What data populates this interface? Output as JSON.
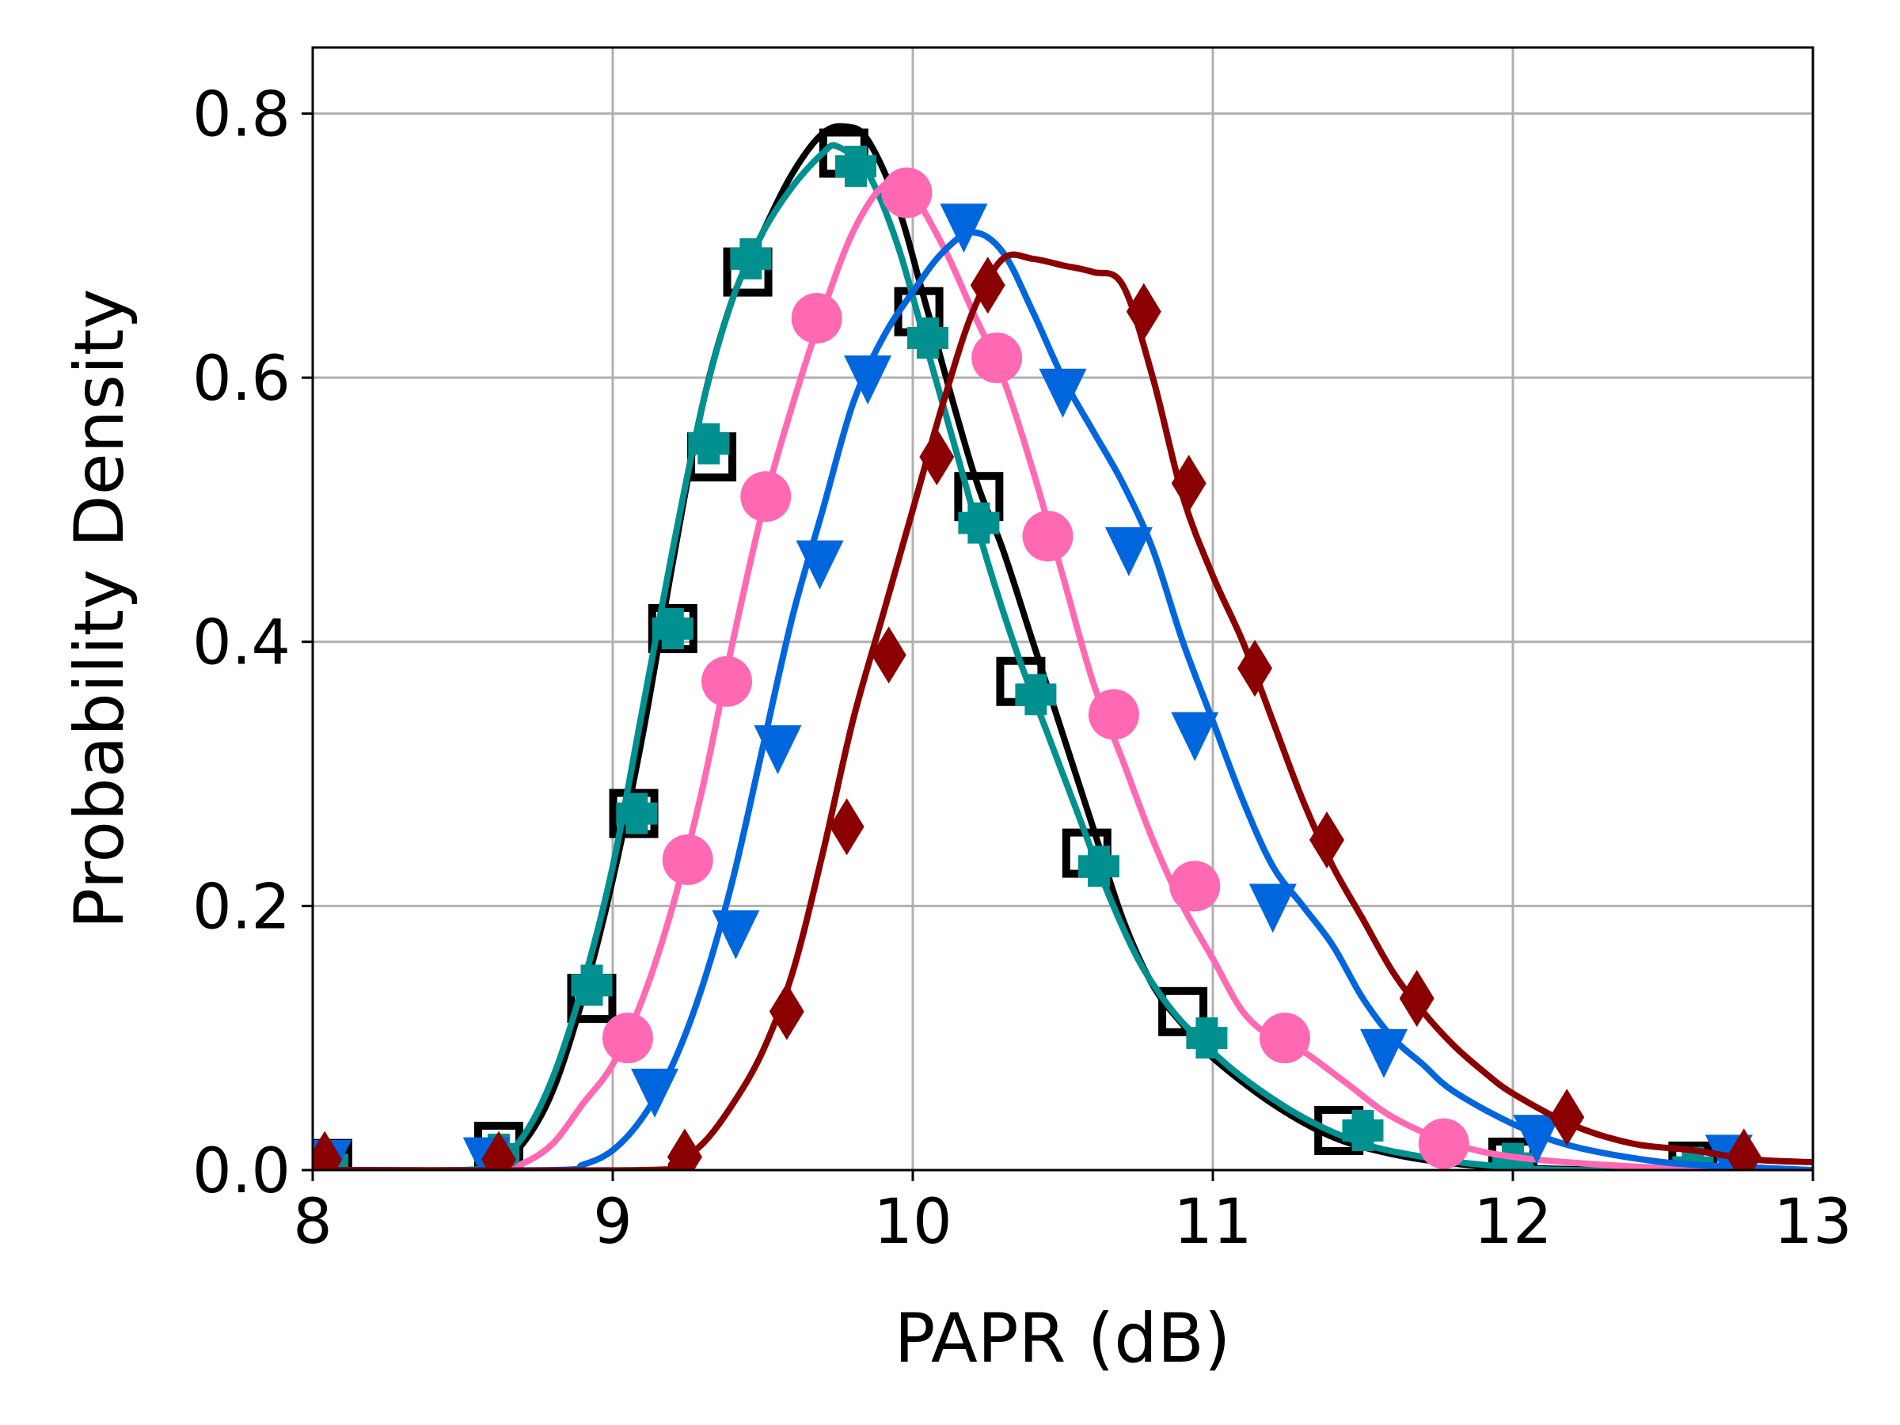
{
  "chart_data": {
    "type": "line",
    "title": "",
    "xlabel": "PAPR (dB)",
    "ylabel": "Probability Density",
    "xlim": [
      8,
      13
    ],
    "ylim": [
      0,
      0.85
    ],
    "xticks": [
      "8",
      "9",
      "10",
      "11",
      "12",
      "13"
    ],
    "yticks": [
      "0.0",
      "0.2",
      "0.4",
      "0.6",
      "0.8"
    ],
    "grid": true,
    "legend": "none",
    "series": [
      {
        "color": "#000000",
        "marker": "square-open",
        "curve": [
          [
            8.0,
            0.0
          ],
          [
            8.5,
            0.0
          ],
          [
            8.6,
            0.003
          ],
          [
            8.7,
            0.02
          ],
          [
            8.8,
            0.06
          ],
          [
            8.9,
            0.13
          ],
          [
            9.0,
            0.22
          ],
          [
            9.1,
            0.33
          ],
          [
            9.2,
            0.46
          ],
          [
            9.3,
            0.58
          ],
          [
            9.4,
            0.66
          ],
          [
            9.5,
            0.71
          ],
          [
            9.6,
            0.755
          ],
          [
            9.7,
            0.785
          ],
          [
            9.78,
            0.79
          ],
          [
            9.85,
            0.78
          ],
          [
            9.95,
            0.73
          ],
          [
            10.05,
            0.65
          ],
          [
            10.2,
            0.53
          ],
          [
            10.3,
            0.47
          ],
          [
            10.4,
            0.4
          ],
          [
            10.5,
            0.33
          ],
          [
            10.6,
            0.26
          ],
          [
            10.7,
            0.19
          ],
          [
            10.8,
            0.14
          ],
          [
            10.9,
            0.11
          ],
          [
            11.0,
            0.085
          ],
          [
            11.2,
            0.05
          ],
          [
            11.4,
            0.025
          ],
          [
            11.6,
            0.012
          ],
          [
            11.8,
            0.005
          ],
          [
            12.0,
            0.002
          ],
          [
            12.4,
            0.0
          ],
          [
            13.0,
            0.0
          ]
        ],
        "points": [
          [
            8.05,
            0.005
          ],
          [
            8.62,
            0.018
          ],
          [
            8.93,
            0.13
          ],
          [
            9.07,
            0.27
          ],
          [
            9.2,
            0.41
          ],
          [
            9.33,
            0.54
          ],
          [
            9.45,
            0.68
          ],
          [
            9.77,
            0.77
          ],
          [
            10.02,
            0.65
          ],
          [
            10.22,
            0.51
          ],
          [
            10.36,
            0.37
          ],
          [
            10.58,
            0.24
          ],
          [
            10.9,
            0.12
          ],
          [
            11.42,
            0.03
          ],
          [
            12.0,
            0.006
          ],
          [
            12.6,
            0.003
          ]
        ]
      },
      {
        "color": "#009090",
        "marker": "plus",
        "curve": [
          [
            8.0,
            0.0
          ],
          [
            8.5,
            0.0
          ],
          [
            8.6,
            0.005
          ],
          [
            8.7,
            0.025
          ],
          [
            8.8,
            0.07
          ],
          [
            8.9,
            0.14
          ],
          [
            9.0,
            0.23
          ],
          [
            9.1,
            0.35
          ],
          [
            9.2,
            0.47
          ],
          [
            9.3,
            0.58
          ],
          [
            9.4,
            0.66
          ],
          [
            9.5,
            0.71
          ],
          [
            9.6,
            0.745
          ],
          [
            9.7,
            0.77
          ],
          [
            9.75,
            0.775
          ],
          [
            9.85,
            0.755
          ],
          [
            9.95,
            0.7
          ],
          [
            10.05,
            0.62
          ],
          [
            10.15,
            0.54
          ],
          [
            10.25,
            0.46
          ],
          [
            10.35,
            0.39
          ],
          [
            10.45,
            0.33
          ],
          [
            10.55,
            0.27
          ],
          [
            10.65,
            0.21
          ],
          [
            10.75,
            0.16
          ],
          [
            10.85,
            0.125
          ],
          [
            10.95,
            0.1
          ],
          [
            11.1,
            0.07
          ],
          [
            11.3,
            0.04
          ],
          [
            11.5,
            0.02
          ],
          [
            11.7,
            0.01
          ],
          [
            11.9,
            0.004
          ],
          [
            12.2,
            0.0
          ],
          [
            13.0,
            0.0
          ]
        ],
        "points": [
          [
            8.05,
            0.004
          ],
          [
            8.62,
            0.012
          ],
          [
            8.93,
            0.14
          ],
          [
            9.08,
            0.27
          ],
          [
            9.2,
            0.41
          ],
          [
            9.32,
            0.55
          ],
          [
            9.46,
            0.69
          ],
          [
            9.81,
            0.76
          ],
          [
            10.05,
            0.63
          ],
          [
            10.22,
            0.49
          ],
          [
            10.41,
            0.36
          ],
          [
            10.62,
            0.23
          ],
          [
            10.98,
            0.1
          ],
          [
            11.5,
            0.03
          ],
          [
            12.0,
            0.005
          ],
          [
            12.6,
            0.002
          ]
        ]
      },
      {
        "color": "#ff69b4",
        "marker": "circle",
        "curve": [
          [
            8.0,
            0.0
          ],
          [
            8.6,
            0.0
          ],
          [
            8.7,
            0.005
          ],
          [
            8.8,
            0.02
          ],
          [
            8.9,
            0.05
          ],
          [
            9.0,
            0.08
          ],
          [
            9.1,
            0.13
          ],
          [
            9.2,
            0.2
          ],
          [
            9.3,
            0.29
          ],
          [
            9.4,
            0.4
          ],
          [
            9.5,
            0.5
          ],
          [
            9.6,
            0.58
          ],
          [
            9.7,
            0.65
          ],
          [
            9.8,
            0.71
          ],
          [
            9.9,
            0.745
          ],
          [
            9.98,
            0.745
          ],
          [
            10.1,
            0.7
          ],
          [
            10.2,
            0.65
          ],
          [
            10.3,
            0.6
          ],
          [
            10.4,
            0.53
          ],
          [
            10.5,
            0.45
          ],
          [
            10.6,
            0.37
          ],
          [
            10.7,
            0.31
          ],
          [
            10.8,
            0.25
          ],
          [
            10.9,
            0.2
          ],
          [
            11.0,
            0.16
          ],
          [
            11.1,
            0.12
          ],
          [
            11.2,
            0.1
          ],
          [
            11.3,
            0.09
          ],
          [
            11.45,
            0.065
          ],
          [
            11.6,
            0.04
          ],
          [
            11.8,
            0.02
          ],
          [
            12.0,
            0.01
          ],
          [
            12.3,
            0.004
          ],
          [
            12.6,
            0.001
          ],
          [
            13.0,
            0.0
          ]
        ],
        "points": [
          [
            9.05,
            0.1
          ],
          [
            9.25,
            0.235
          ],
          [
            9.38,
            0.37
          ],
          [
            9.51,
            0.51
          ],
          [
            9.68,
            0.645
          ],
          [
            9.98,
            0.74
          ],
          [
            10.28,
            0.615
          ],
          [
            10.45,
            0.48
          ],
          [
            10.67,
            0.345
          ],
          [
            10.94,
            0.215
          ],
          [
            11.24,
            0.1
          ],
          [
            11.77,
            0.02
          ]
        ]
      },
      {
        "color": "#0066dd",
        "marker": "triangle-down",
        "curve": [
          [
            8.0,
            0.0
          ],
          [
            8.8,
            0.0
          ],
          [
            8.9,
            0.004
          ],
          [
            9.0,
            0.015
          ],
          [
            9.1,
            0.04
          ],
          [
            9.2,
            0.08
          ],
          [
            9.3,
            0.14
          ],
          [
            9.4,
            0.22
          ],
          [
            9.5,
            0.32
          ],
          [
            9.6,
            0.42
          ],
          [
            9.7,
            0.5
          ],
          [
            9.8,
            0.58
          ],
          [
            9.9,
            0.63
          ],
          [
            10.0,
            0.665
          ],
          [
            10.1,
            0.695
          ],
          [
            10.2,
            0.71
          ],
          [
            10.3,
            0.695
          ],
          [
            10.4,
            0.65
          ],
          [
            10.5,
            0.6
          ],
          [
            10.6,
            0.56
          ],
          [
            10.7,
            0.52
          ],
          [
            10.8,
            0.47
          ],
          [
            10.9,
            0.4
          ],
          [
            11.0,
            0.34
          ],
          [
            11.1,
            0.28
          ],
          [
            11.2,
            0.23
          ],
          [
            11.3,
            0.2
          ],
          [
            11.4,
            0.17
          ],
          [
            11.5,
            0.13
          ],
          [
            11.6,
            0.1
          ],
          [
            11.7,
            0.08
          ],
          [
            11.8,
            0.06
          ],
          [
            12.0,
            0.035
          ],
          [
            12.2,
            0.018
          ],
          [
            12.5,
            0.006
          ],
          [
            12.8,
            0.002
          ],
          [
            13.0,
            0.0
          ]
        ],
        "points": [
          [
            8.05,
            0.006
          ],
          [
            8.58,
            0.008
          ],
          [
            9.14,
            0.06
          ],
          [
            9.41,
            0.18
          ],
          [
            9.55,
            0.32
          ],
          [
            9.69,
            0.46
          ],
          [
            9.85,
            0.6
          ],
          [
            10.17,
            0.715
          ],
          [
            10.5,
            0.59
          ],
          [
            10.72,
            0.47
          ],
          [
            10.94,
            0.33
          ],
          [
            11.2,
            0.2
          ],
          [
            11.57,
            0.09
          ],
          [
            12.08,
            0.025
          ],
          [
            12.72,
            0.01
          ]
        ]
      },
      {
        "color": "#8b0000",
        "marker": "diamond-thin",
        "curve": [
          [
            8.0,
            0.0
          ],
          [
            9.1,
            0.0
          ],
          [
            9.2,
            0.005
          ],
          [
            9.3,
            0.02
          ],
          [
            9.4,
            0.05
          ],
          [
            9.5,
            0.09
          ],
          [
            9.6,
            0.15
          ],
          [
            9.7,
            0.24
          ],
          [
            9.8,
            0.34
          ],
          [
            9.9,
            0.42
          ],
          [
            10.0,
            0.5
          ],
          [
            10.1,
            0.58
          ],
          [
            10.2,
            0.65
          ],
          [
            10.3,
            0.69
          ],
          [
            10.4,
            0.69
          ],
          [
            10.5,
            0.685
          ],
          [
            10.6,
            0.68
          ],
          [
            10.7,
            0.67
          ],
          [
            10.8,
            0.6
          ],
          [
            10.9,
            0.51
          ],
          [
            11.0,
            0.45
          ],
          [
            11.1,
            0.4
          ],
          [
            11.2,
            0.34
          ],
          [
            11.3,
            0.28
          ],
          [
            11.4,
            0.23
          ],
          [
            11.5,
            0.19
          ],
          [
            11.6,
            0.15
          ],
          [
            11.7,
            0.12
          ],
          [
            11.8,
            0.095
          ],
          [
            11.9,
            0.075
          ],
          [
            12.0,
            0.058
          ],
          [
            12.2,
            0.034
          ],
          [
            12.4,
            0.02
          ],
          [
            12.6,
            0.015
          ],
          [
            12.8,
            0.008
          ],
          [
            13.0,
            0.006
          ]
        ],
        "points": [
          [
            8.04,
            0.008
          ],
          [
            8.62,
            0.008
          ],
          [
            9.24,
            0.01
          ],
          [
            9.58,
            0.12
          ],
          [
            9.78,
            0.26
          ],
          [
            9.92,
            0.39
          ],
          [
            10.08,
            0.54
          ],
          [
            10.25,
            0.67
          ],
          [
            10.77,
            0.65
          ],
          [
            10.92,
            0.52
          ],
          [
            11.14,
            0.38
          ],
          [
            11.38,
            0.25
          ],
          [
            11.68,
            0.13
          ],
          [
            12.18,
            0.04
          ],
          [
            12.77,
            0.01
          ]
        ]
      }
    ]
  }
}
